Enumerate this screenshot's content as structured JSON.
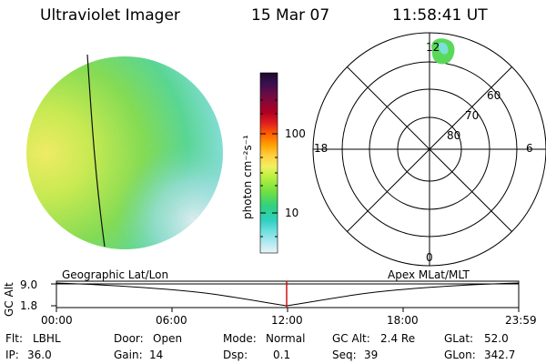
{
  "header": {
    "instrument": "Ultraviolet Imager",
    "date": "15 Mar 07",
    "time": "11:58:41 UT"
  },
  "colorbar": {
    "unit_label": "photon cm⁻²s⁻¹",
    "ticks": [
      "100",
      "10"
    ],
    "colors": [
      "#1a0a2a",
      "#3a1050",
      "#7a0a40",
      "#b00020",
      "#e02020",
      "#ff6000",
      "#ffa000",
      "#ffd040",
      "#f0f060",
      "#b8f040",
      "#70e040",
      "#30d080",
      "#30d0c0",
      "#70e0e0",
      "#b0e8f0",
      "#e8f4f8"
    ]
  },
  "polar_plot": {
    "mlt_labels": {
      "top": "12",
      "left": "18",
      "right": "6",
      "bottom": "0"
    },
    "lat_labels": [
      "60",
      "70",
      "80"
    ]
  },
  "timeline": {
    "y_axis_label": "GC Alt",
    "y_ticks": [
      "9.0",
      "1.8"
    ],
    "left_caption": "Geographic Lat/Lon",
    "right_caption": "Apex MLat/MLT",
    "x_ticks": [
      "00:00",
      "06:00",
      "12:00",
      "18:00",
      "23:59"
    ],
    "marker_color": "#d00000"
  },
  "info": {
    "row1": [
      {
        "label": "Flt:",
        "value": "LBHL"
      },
      {
        "label": "Door:",
        "value": "Open"
      },
      {
        "label": "Mode:",
        "value": "Normal"
      },
      {
        "label": "GC Alt:",
        "value": "2.4 Re"
      },
      {
        "label": "GLat:",
        "value": "52.0"
      }
    ],
    "row2": [
      {
        "label": "IP:",
        "value": "36.0"
      },
      {
        "label": "Gain:",
        "value": "14"
      },
      {
        "label": "Dsp:",
        "value": "0.1"
      },
      {
        "label": "Seq:",
        "value": "39"
      },
      {
        "label": "GLon:",
        "value": "342.7"
      }
    ]
  }
}
